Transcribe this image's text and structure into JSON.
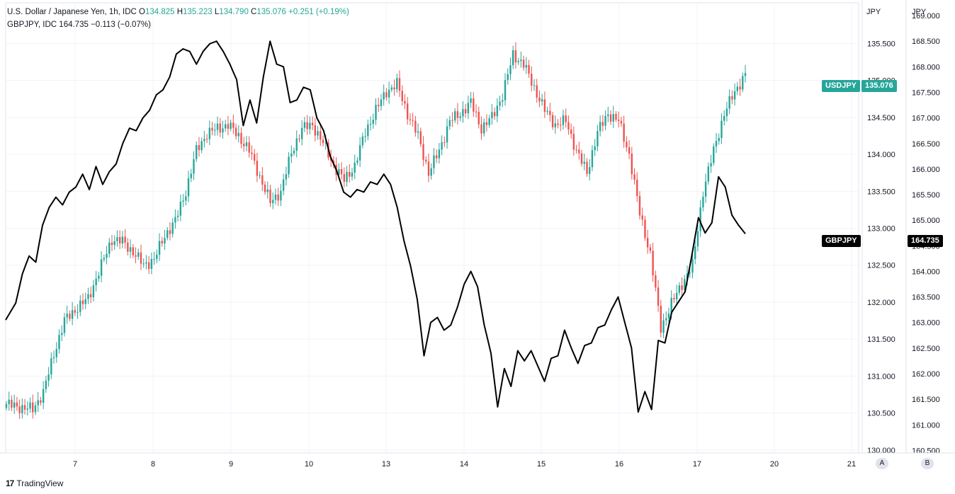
{
  "legend": {
    "main_title": "U.S. Dollar / Japanese Yen, 1h, IDC",
    "o_label": "O",
    "o_value": "134.825",
    "h_label": "H",
    "h_value": "135.223",
    "l_label": "L",
    "l_value": "134.790",
    "c_label": "C",
    "c_value": "135.076",
    "change": "+0.251 (+0.19%)",
    "second_title": "GBPJPY, IDC",
    "second_value": "164.735",
    "second_change": "−0.113 (−0.07%)"
  },
  "tags": {
    "usdjpy_name": "USDJPY",
    "usdjpy_price": "135.076",
    "gbpjpy_name": "GBPJPY",
    "gbpjpy_price": "164.735"
  },
  "axis": {
    "left_scale_unit": "JPY",
    "right_scale_unit": "JPY",
    "button_a": "A",
    "button_b": "B"
  },
  "footer": {
    "brand": "TradingView",
    "logo_glyph": "17"
  },
  "colors": {
    "up": "#26a69a",
    "down": "#ef5350",
    "line": "#000000",
    "usd_tag": "#26a69a",
    "gbp_tag": "#000000",
    "grid": "#f0f3fa"
  },
  "chart_data": {
    "type": "candlestick+line",
    "x_ticks": [
      "7",
      "8",
      "9",
      "10",
      "13",
      "14",
      "15",
      "16",
      "17",
      "20",
      "21"
    ],
    "usdjpy_axis": {
      "ticks": [
        "130.000",
        "130.500",
        "131.000",
        "131.500",
        "132.000",
        "132.500",
        "133.000",
        "133.500",
        "134.000",
        "134.500",
        "135.000",
        "135.500"
      ],
      "range": [
        129.96,
        136.05
      ]
    },
    "gbpjpy_axis": {
      "ticks": [
        "160.500",
        "161.000",
        "161.500",
        "162.000",
        "162.500",
        "163.000",
        "163.500",
        "164.000",
        "164.500",
        "165.000",
        "165.500",
        "166.000",
        "166.500",
        "167.000",
        "167.500",
        "168.000",
        "168.500",
        "169.000"
      ],
      "range": [
        160.45,
        169.25
      ]
    },
    "usdjpy_close_anchors": [
      [
        0,
        130.62
      ],
      [
        5,
        130.58
      ],
      [
        10,
        130.55
      ],
      [
        14,
        130.78
      ],
      [
        18,
        131.3
      ],
      [
        22,
        131.75
      ],
      [
        27,
        131.93
      ],
      [
        31,
        132.05
      ],
      [
        36,
        132.5
      ],
      [
        40,
        132.85
      ],
      [
        44,
        132.82
      ],
      [
        48,
        132.68
      ],
      [
        52,
        132.5
      ],
      [
        56,
        132.58
      ],
      [
        60,
        132.9
      ],
      [
        64,
        133.1
      ],
      [
        68,
        133.5
      ],
      [
        72,
        134.05
      ],
      [
        76,
        134.28
      ],
      [
        80,
        134.35
      ],
      [
        84,
        134.4
      ],
      [
        88,
        134.25
      ],
      [
        92,
        134.05
      ],
      [
        96,
        133.7
      ],
      [
        100,
        133.35
      ],
      [
        104,
        133.5
      ],
      [
        108,
        134.02
      ],
      [
        112,
        134.35
      ],
      [
        116,
        134.4
      ],
      [
        120,
        134.15
      ],
      [
        124,
        133.85
      ],
      [
        128,
        133.65
      ],
      [
        132,
        133.85
      ],
      [
        136,
        134.3
      ],
      [
        140,
        134.6
      ],
      [
        144,
        134.85
      ],
      [
        148,
        134.95
      ],
      [
        152,
        134.55
      ],
      [
        156,
        134.25
      ],
      [
        160,
        133.75
      ],
      [
        164,
        134.05
      ],
      [
        168,
        134.45
      ],
      [
        172,
        134.55
      ],
      [
        176,
        134.7
      ],
      [
        180,
        134.35
      ],
      [
        184,
        134.5
      ],
      [
        188,
        134.8
      ],
      [
        192,
        135.35
      ],
      [
        196,
        135.22
      ],
      [
        200,
        134.9
      ],
      [
        204,
        134.6
      ],
      [
        208,
        134.4
      ],
      [
        212,
        134.45
      ],
      [
        216,
        134.05
      ],
      [
        220,
        133.75
      ],
      [
        224,
        134.3
      ],
      [
        228,
        134.55
      ],
      [
        232,
        134.45
      ],
      [
        236,
        134.0
      ],
      [
        240,
        133.2
      ],
      [
        244,
        132.65
      ],
      [
        248,
        131.65
      ],
      [
        252,
        131.98
      ],
      [
        256,
        132.25
      ],
      [
        260,
        132.5
      ],
      [
        264,
        133.5
      ],
      [
        268,
        134.05
      ],
      [
        272,
        134.55
      ],
      [
        276,
        134.85
      ],
      [
        280,
        135.08
      ]
    ],
    "gbpjpy_close_anchors": [
      [
        0,
        163.05
      ],
      [
        3,
        163.38
      ],
      [
        5,
        163.95
      ],
      [
        7,
        164.3
      ],
      [
        9,
        164.18
      ],
      [
        11,
        164.9
      ],
      [
        13,
        165.25
      ],
      [
        15,
        165.45
      ],
      [
        17,
        165.3
      ],
      [
        19,
        165.55
      ],
      [
        21,
        165.65
      ],
      [
        23,
        165.9
      ],
      [
        25,
        165.6
      ],
      [
        27,
        166.05
      ],
      [
        29,
        165.7
      ],
      [
        31,
        165.95
      ],
      [
        33,
        166.1
      ],
      [
        35,
        166.5
      ],
      [
        37,
        166.8
      ],
      [
        39,
        166.75
      ],
      [
        41,
        167.0
      ],
      [
        43,
        167.15
      ],
      [
        45,
        167.45
      ],
      [
        47,
        167.55
      ],
      [
        49,
        167.8
      ],
      [
        51,
        168.25
      ],
      [
        53,
        168.35
      ],
      [
        55,
        168.3
      ],
      [
        57,
        168.05
      ],
      [
        59,
        168.3
      ],
      [
        61,
        168.45
      ],
      [
        63,
        168.5
      ],
      [
        65,
        168.3
      ],
      [
        67,
        168.05
      ],
      [
        69,
        167.75
      ],
      [
        71,
        166.85
      ],
      [
        73,
        167.35
      ],
      [
        75,
        166.9
      ],
      [
        77,
        167.8
      ],
      [
        79,
        168.5
      ],
      [
        81,
        168.05
      ],
      [
        83,
        168.0
      ],
      [
        85,
        167.3
      ],
      [
        87,
        167.35
      ],
      [
        89,
        167.6
      ],
      [
        91,
        167.55
      ],
      [
        93,
        167.0
      ],
      [
        95,
        166.75
      ],
      [
        97,
        166.25
      ],
      [
        99,
        165.95
      ],
      [
        101,
        165.55
      ],
      [
        103,
        165.45
      ],
      [
        105,
        165.6
      ],
      [
        107,
        165.55
      ],
      [
        109,
        165.75
      ],
      [
        111,
        165.7
      ],
      [
        113,
        165.9
      ],
      [
        115,
        165.7
      ],
      [
        117,
        165.25
      ],
      [
        119,
        164.6
      ],
      [
        121,
        164.1
      ],
      [
        123,
        163.45
      ],
      [
        125,
        162.35
      ],
      [
        127,
        163.0
      ],
      [
        129,
        163.1
      ],
      [
        131,
        162.85
      ],
      [
        133,
        162.95
      ],
      [
        135,
        163.3
      ],
      [
        137,
        163.75
      ],
      [
        139,
        164.0
      ],
      [
        141,
        163.7
      ],
      [
        143,
        162.95
      ],
      [
        145,
        162.4
      ],
      [
        147,
        161.35
      ],
      [
        149,
        162.1
      ],
      [
        151,
        161.75
      ],
      [
        153,
        162.45
      ],
      [
        155,
        162.25
      ],
      [
        157,
        162.45
      ],
      [
        159,
        162.15
      ],
      [
        161,
        161.85
      ],
      [
        163,
        162.3
      ],
      [
        165,
        162.35
      ],
      [
        167,
        162.85
      ],
      [
        169,
        162.5
      ],
      [
        171,
        162.2
      ],
      [
        173,
        162.55
      ],
      [
        175,
        162.6
      ],
      [
        177,
        162.9
      ],
      [
        179,
        162.95
      ],
      [
        181,
        163.25
      ],
      [
        183,
        163.5
      ],
      [
        185,
        163.0
      ],
      [
        187,
        162.5
      ],
      [
        189,
        161.25
      ],
      [
        191,
        161.65
      ],
      [
        193,
        161.3
      ],
      [
        195,
        162.65
      ],
      [
        197,
        162.6
      ],
      [
        199,
        163.2
      ],
      [
        201,
        163.4
      ],
      [
        203,
        163.6
      ],
      [
        205,
        164.3
      ],
      [
        207,
        165.05
      ],
      [
        209,
        164.75
      ],
      [
        211,
        164.95
      ],
      [
        213,
        165.85
      ],
      [
        215,
        165.65
      ],
      [
        217,
        165.1
      ],
      [
        219,
        164.9
      ],
      [
        221,
        164.735
      ]
    ]
  }
}
